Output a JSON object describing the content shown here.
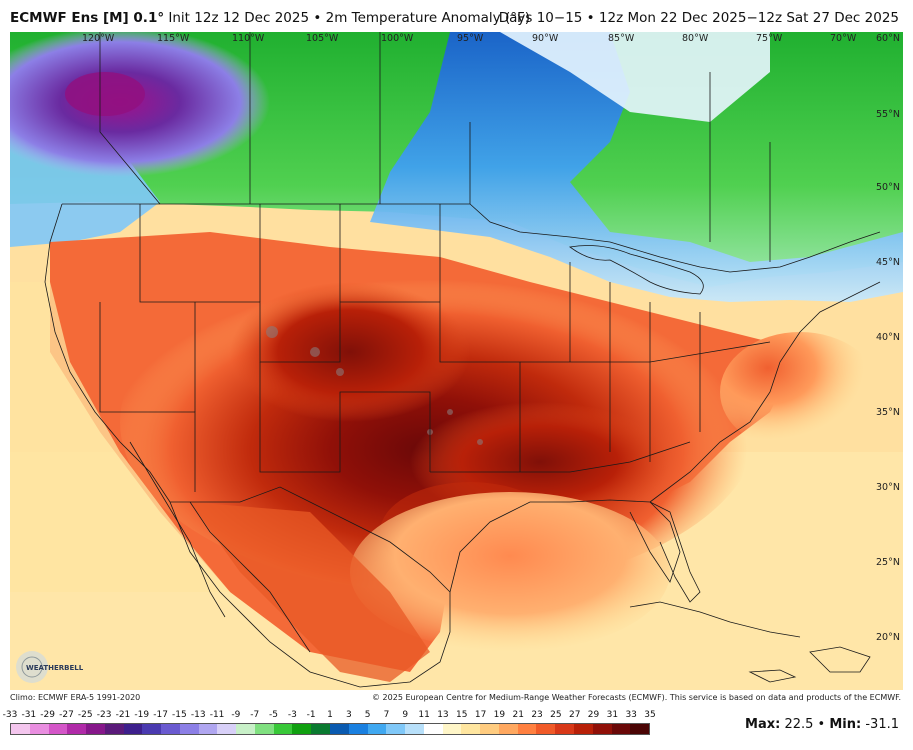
{
  "header": {
    "model": "ECMWF Ens [M] 0.1°",
    "init": "Init 12z 12 Dec 2025 • 2m Temperature Anomaly (°F)",
    "period": "Days 10−15 • 12z Mon 22 Dec 2025−12z Sat 27 Dec 2025"
  },
  "map": {
    "lon_labels": [
      "120°W",
      "115°W",
      "110°W",
      "105°W",
      "100°W",
      "95°W",
      "90°W",
      "85°W",
      "80°W",
      "75°W",
      "70°W",
      "60°N"
    ],
    "lat_labels": [
      "55°N",
      "50°N",
      "45°N",
      "40°N",
      "35°N",
      "30°N",
      "25°N",
      "20°N"
    ],
    "logo_text": "WEATHERBELL"
  },
  "footer": {
    "climo": "Climo: ECMWF ERA-5 1991-2020",
    "copyright": "© 2025 European Centre for Medium-Range Weather Forecasts (ECMWF). This service is based on data and products of the ECMWF.",
    "max_label": "Max:",
    "max_value": "22.5",
    "separator": "•",
    "min_label": "Min:",
    "min_value": "-31.1"
  },
  "scale": {
    "labels": [
      "-33",
      "-31",
      "-29",
      "-27",
      "-25",
      "-23",
      "-21",
      "-19",
      "-17",
      "-15",
      "-13",
      "-11",
      "-9",
      "-7",
      "-5",
      "-3",
      "-1",
      "1",
      "3",
      "5",
      "7",
      "9",
      "11",
      "13",
      "15",
      "17",
      "19",
      "21",
      "23",
      "25",
      "27",
      "29",
      "31",
      "33",
      "35"
    ],
    "colors": [
      "#f4c6ee",
      "#e98ee0",
      "#d456c8",
      "#b02aa8",
      "#86178a",
      "#5a1a7a",
      "#3d1f8c",
      "#4a3ab0",
      "#6a5ad0",
      "#8c7fe6",
      "#b0a6f0",
      "#d8d0f8",
      "#c8f0c8",
      "#80e080",
      "#38c838",
      "#10a010",
      "#0a7a30",
      "#0a5ab0",
      "#1a80e0",
      "#40a8f0",
      "#80c8f8",
      "#b8e0fa",
      "#ffffff",
      "#fff6c8",
      "#ffe6a0",
      "#ffcc80",
      "#ffa860",
      "#ff8040",
      "#f05a28",
      "#d83818",
      "#b82008",
      "#901008",
      "#6a0808",
      "#4a0404"
    ]
  }
}
